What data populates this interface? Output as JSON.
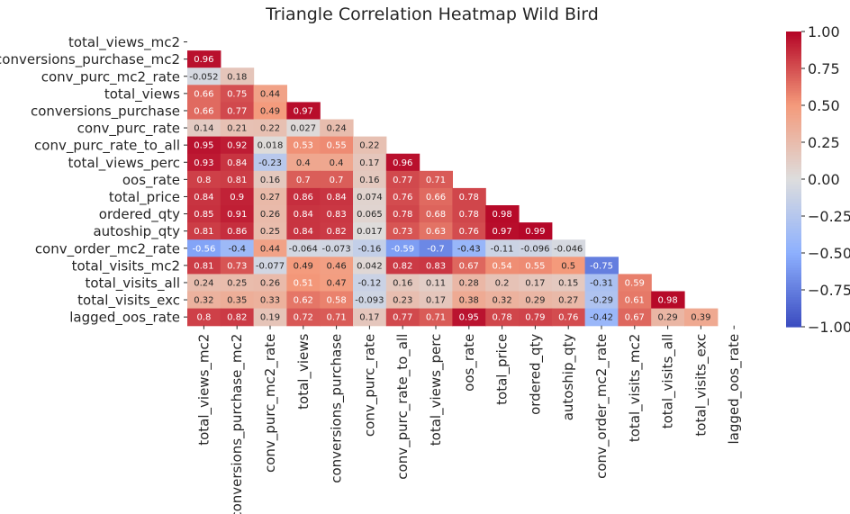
{
  "chart_data": {
    "type": "heatmap",
    "title": "Triangle Correlation Heatmap Wild Bird",
    "labels": [
      "total_views_mc2",
      "conversions_purchase_mc2",
      "conv_purc_mc2_rate",
      "total_views",
      "conversions_purchase",
      "conv_purc_rate",
      "conv_purc_rate_to_all",
      "total_views_perc",
      "oos_rate",
      "total_price",
      "ordered_qty",
      "autoship_qty",
      "conv_order_mc2_rate",
      "total_visits_mc2",
      "total_visits_all",
      "total_visits_exc",
      "lagged_oos_rate"
    ],
    "rows": [
      [],
      [
        "0.96"
      ],
      [
        "-0.052",
        "0.18"
      ],
      [
        "0.66",
        "0.75",
        "0.44"
      ],
      [
        "0.66",
        "0.77",
        "0.49",
        "0.97"
      ],
      [
        "0.14",
        "0.21",
        "0.22",
        "0.027",
        "0.24"
      ],
      [
        "0.95",
        "0.92",
        "0.018",
        "0.53",
        "0.55",
        "0.22"
      ],
      [
        "0.93",
        "0.84",
        "-0.23",
        "0.4",
        "0.4",
        "0.17",
        "0.96"
      ],
      [
        "0.8",
        "0.81",
        "0.16",
        "0.7",
        "0.7",
        "0.16",
        "0.77",
        "0.71"
      ],
      [
        "0.84",
        "0.9",
        "0.27",
        "0.86",
        "0.84",
        "0.074",
        "0.76",
        "0.66",
        "0.78"
      ],
      [
        "0.85",
        "0.91",
        "0.26",
        "0.84",
        "0.83",
        "0.065",
        "0.78",
        "0.68",
        "0.78",
        "0.98"
      ],
      [
        "0.81",
        "0.86",
        "0.25",
        "0.84",
        "0.82",
        "0.017",
        "0.73",
        "0.63",
        "0.76",
        "0.97",
        "0.99"
      ],
      [
        "-0.56",
        "-0.4",
        "0.44",
        "-0.064",
        "-0.073",
        "-0.16",
        "-0.59",
        "-0.7",
        "-0.43",
        "-0.11",
        "-0.096",
        "-0.046"
      ],
      [
        "0.81",
        "0.73",
        "-0.077",
        "0.49",
        "0.46",
        "0.042",
        "0.82",
        "0.83",
        "0.67",
        "0.54",
        "0.55",
        "0.5",
        "-0.75"
      ],
      [
        "0.24",
        "0.25",
        "0.26",
        "0.51",
        "0.47",
        "-0.12",
        "0.16",
        "0.11",
        "0.28",
        "0.2",
        "0.17",
        "0.15",
        "-0.31",
        "0.59"
      ],
      [
        "0.32",
        "0.35",
        "0.33",
        "0.62",
        "0.58",
        "-0.093",
        "0.23",
        "0.17",
        "0.38",
        "0.32",
        "0.29",
        "0.27",
        "-0.29",
        "0.61",
        "0.98"
      ],
      [
        "0.8",
        "0.82",
        "0.19",
        "0.72",
        "0.71",
        "0.17",
        "0.77",
        "0.71",
        "0.95",
        "0.78",
        "0.79",
        "0.76",
        "-0.42",
        "0.67",
        "0.29",
        "0.39"
      ]
    ],
    "vmin": -1,
    "vmax": 1,
    "colormap": "coolwarm",
    "colorbar_ticks": [
      "1.00",
      "0.75",
      "0.50",
      "0.25",
      "0.00",
      "−0.25",
      "−0.50",
      "−0.75",
      "−1.00"
    ],
    "grid": false
  }
}
